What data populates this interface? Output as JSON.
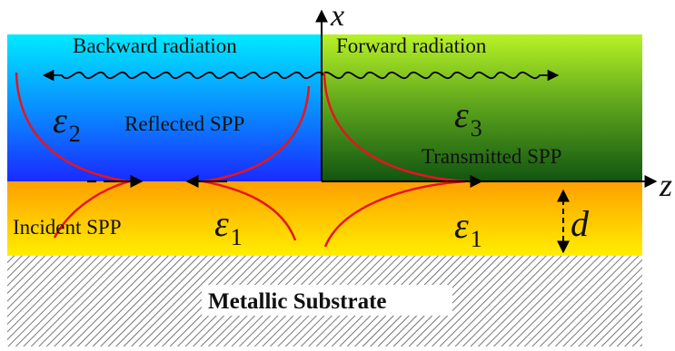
{
  "labels": {
    "backward_radiation": "Backward radiation",
    "forward_radiation": "Forward radiation",
    "reflected_spp": "Reflected SPP",
    "transmitted_spp": "Transmitted SPP",
    "incident_spp": "Incident SPP",
    "metallic_substrate": "Metallic Substrate"
  },
  "symbols": {
    "epsilon": "ε",
    "eps2_sub": "2",
    "eps3_sub": "3",
    "eps1_sub": "1",
    "axis_x": "x",
    "axis_z": "z",
    "thickness": "d"
  },
  "colors": {
    "left_top": "#00eaff",
    "left_bottom": "#1a2aff",
    "right_top": "#b8f227",
    "right_bottom": "#115511",
    "layer_top": "#ff9f00",
    "layer_bottom": "#ffee00",
    "curve": "#e8141e",
    "hatch": "#555555"
  }
}
